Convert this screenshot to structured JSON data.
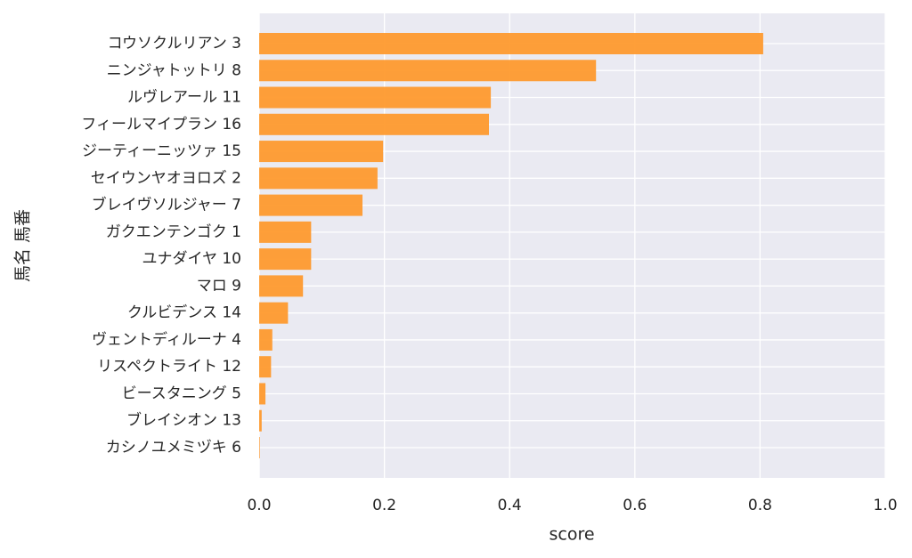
{
  "chart_data": {
    "type": "barh",
    "xlabel": "score",
    "ylabel": "馬名 馬番",
    "categories": [
      "コウソクルリアン 3",
      "ニンジャトットリ 8",
      "ルヴレアール 11",
      "フィールマイプラン 16",
      "ジーティーニッツァ 15",
      "セイウンヤオヨロズ 2",
      "ブレイヴソルジャー 7",
      "ガクエンテンゴク 1",
      "ユナダイヤ 10",
      "マロ 9",
      "クルビデンス 14",
      "ヴェントディルーナ 4",
      "リスペクトライト 12",
      "ビースタニング 5",
      "ブレイシオン 13",
      "カシノユメミヅキ 6"
    ],
    "values": [
      0.805,
      0.538,
      0.37,
      0.367,
      0.198,
      0.189,
      0.165,
      0.083,
      0.083,
      0.07,
      0.046,
      0.021,
      0.019,
      0.01,
      0.004,
      0.001
    ],
    "color": "#fe9a2e",
    "xlim": [
      0,
      1
    ],
    "xticks": [
      {
        "value": 0,
        "label": "0.0"
      },
      0.2,
      0.4,
      0.6,
      0.8,
      {
        "value": 1,
        "label": "1.0"
      }
    ],
    "grid": true
  }
}
